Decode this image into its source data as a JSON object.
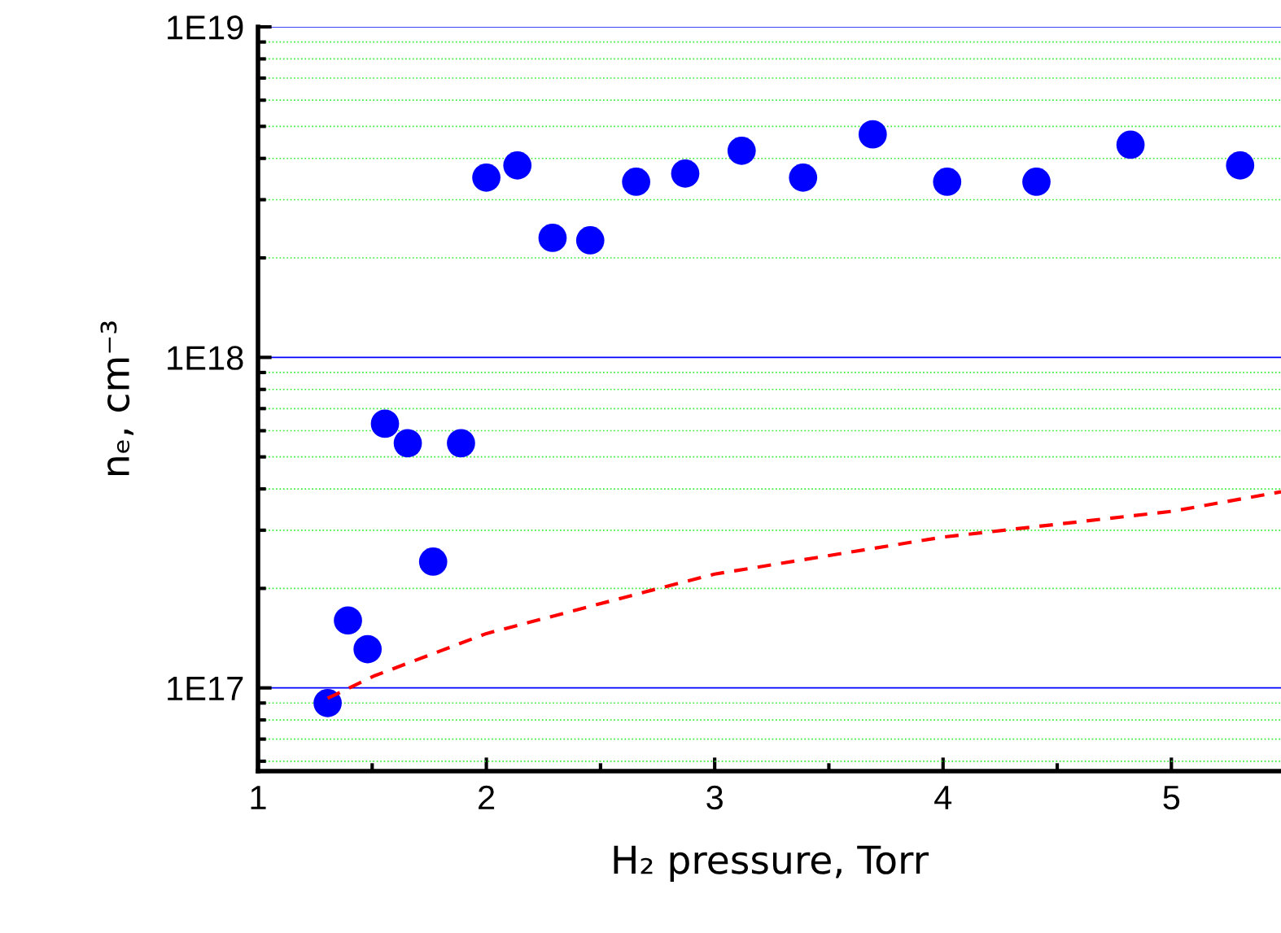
{
  "chart_data": {
    "type": "scatter",
    "xlabel": "H₂ pressure, Torr",
    "ylabel": "nₑ, cm⁻³",
    "log": "y",
    "xlim": [
      1,
      5.48
    ],
    "ylim": [
      5.6e+16,
      1e+19
    ],
    "xticks": [
      1,
      2,
      3,
      4,
      5
    ],
    "yticks": [
      {
        "value": 6e+16,
        "label": null
      },
      {
        "value": 7e+16,
        "label": null
      },
      {
        "value": 8e+16,
        "label": null
      },
      {
        "value": 9e+16,
        "label": null
      },
      {
        "value": 1e+17,
        "label": "1E17"
      },
      {
        "value": 2e+17,
        "label": null
      },
      {
        "value": 3e+17,
        "label": null
      },
      {
        "value": 4e+17,
        "label": null
      },
      {
        "value": 5e+17,
        "label": null
      },
      {
        "value": 6e+17,
        "label": null
      },
      {
        "value": 7e+17,
        "label": null
      },
      {
        "value": 8e+17,
        "label": null
      },
      {
        "value": 9e+17,
        "label": null
      },
      {
        "value": 1e+18,
        "label": "1E18"
      },
      {
        "value": 2e+18,
        "label": null
      },
      {
        "value": 3e+18,
        "label": null
      },
      {
        "value": 4e+18,
        "label": null
      },
      {
        "value": 5e+18,
        "label": null
      },
      {
        "value": 6e+18,
        "label": null
      },
      {
        "value": 7e+18,
        "label": null
      },
      {
        "value": 8e+18,
        "label": null
      },
      {
        "value": 9e+18,
        "label": null
      },
      {
        "value": 1e+19,
        "label": "1E19"
      }
    ],
    "grid": "y",
    "marker": "circle",
    "series": [
      {
        "color": "#0000ff",
        "x": [
          1.305,
          1.394,
          1.48,
          1.556,
          1.656,
          1.767,
          1.889,
          2.0,
          2.136,
          2.29,
          2.455,
          2.656,
          2.871,
          3.118,
          3.387,
          3.692,
          4.018,
          4.409,
          4.821,
          5.301
        ],
        "values": [
          9e+16,
          1.6e+17,
          1.31e+17,
          6.3e+17,
          5.5e+17,
          2.41e+17,
          5.5e+17,
          3.5e+18,
          3.81e+18,
          2.3e+18,
          2.26e+18,
          3.4e+18,
          3.6e+18,
          4.22e+18,
          3.5e+18,
          4.73e+18,
          3.4e+18,
          3.4e+18,
          4.4e+18,
          3.81e+18
        ]
      },
      {
        "type": "line",
        "line_style": "dashed",
        "marker": "none",
        "color": "#ff0000",
        "x": [
          1.305,
          1.513,
          2.0,
          2.731,
          3.0,
          4.0,
          5.0,
          5.48
        ],
        "values": [
          9.3e+16,
          1.09e+17,
          1.46e+17,
          1.98e+17,
          2.21e+17,
          2.86e+17,
          3.42e+17,
          3.92e+17
        ]
      }
    ]
  }
}
